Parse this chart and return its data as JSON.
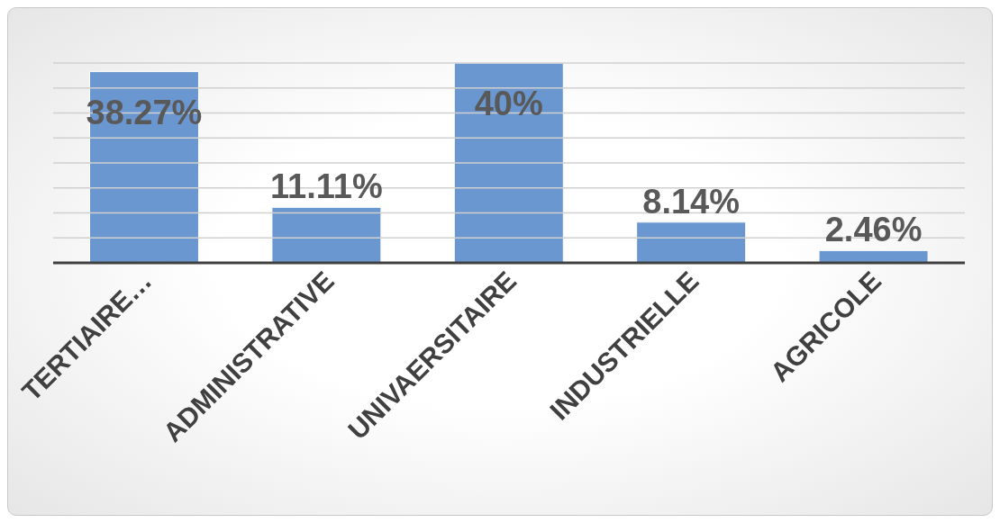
{
  "chart_data": {
    "type": "bar",
    "categories": [
      "TERTIAIRE…",
      "ADMINISTRATIVE",
      "UNIVAERSITAIRE",
      "INDUSTRIELLE",
      "AGRICOLE"
    ],
    "values": [
      38.27,
      11.11,
      40,
      8.14,
      2.46
    ],
    "value_labels": [
      "38.27%",
      "11.11%",
      "40%",
      "8.14%",
      "2.46%"
    ],
    "color": "#6a97cf",
    "ylim": [
      0,
      40
    ],
    "yticks": [
      {
        "value": 0,
        "label": null
      },
      {
        "value": 5,
        "label": null
      },
      {
        "value": 10,
        "label": null
      },
      {
        "value": 15,
        "label": null
      },
      {
        "value": 20,
        "label": null
      },
      {
        "value": 25,
        "label": null
      },
      {
        "value": 30,
        "label": null
      },
      {
        "value": 35,
        "label": null
      },
      {
        "value": 40,
        "label": null
      }
    ],
    "tick_labels": "x",
    "grid": "y"
  }
}
